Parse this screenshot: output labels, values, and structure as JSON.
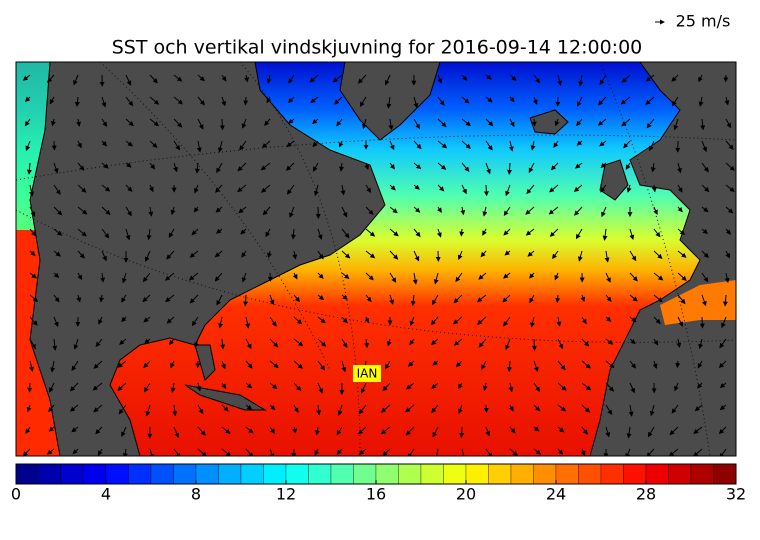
{
  "header": {
    "title": "SST och vertikal vindskjuvning for 2016-09-14 12:00:00",
    "reference_arrow_label": "25 m/s"
  },
  "map": {
    "storm_labels": [
      "IAN"
    ]
  },
  "colorbar": {
    "colormap": "jet",
    "lim": [
      0,
      32
    ],
    "ticks": [
      0,
      4,
      8,
      12,
      16,
      20,
      24,
      28,
      32
    ],
    "levels": [
      0,
      1,
      2,
      3,
      4,
      5,
      6,
      7,
      8,
      9,
      10,
      11,
      12,
      13,
      14,
      15,
      16,
      17,
      18,
      19,
      20,
      21,
      22,
      23,
      24,
      25,
      26,
      27,
      28,
      29,
      30,
      31,
      32
    ]
  }
}
